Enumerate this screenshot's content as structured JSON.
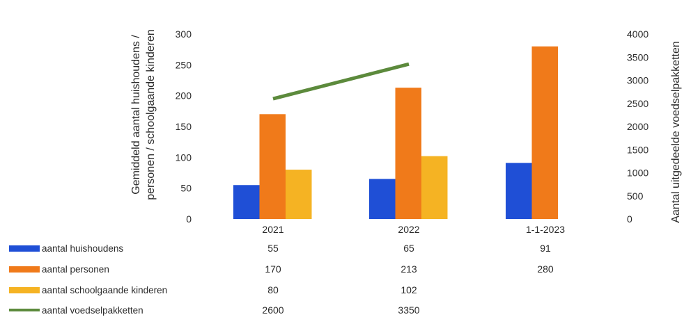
{
  "chart_data": {
    "type": "bar",
    "categories": [
      "2021",
      "2022",
      "1-1-2023"
    ],
    "ylabel_left": [
      "Gemiddeld aantal huishoudens /",
      "personen / schoolgaande kinderen"
    ],
    "ylabel_right": "Aantal uitgedeelde voedselpakketten",
    "ylim_left": [
      0,
      300
    ],
    "ylim_right": [
      0,
      4000
    ],
    "yticks_left": [
      "0",
      "50",
      "100",
      "150",
      "200",
      "250",
      "300"
    ],
    "yticks_right": [
      "0",
      "500",
      "1000",
      "1500",
      "2000",
      "2500",
      "3000",
      "3500",
      "4000"
    ],
    "legend": "data-table",
    "series": [
      {
        "name": "aantal huishoudens",
        "type": "bar",
        "axis": "left",
        "color": "#1f4fd6",
        "values": [
          55,
          65,
          91
        ],
        "labels": [
          "55",
          "65",
          "91"
        ]
      },
      {
        "name": "aantal personen",
        "type": "bar",
        "axis": "left",
        "color": "#f07a1a",
        "values": [
          170,
          213,
          280
        ],
        "labels": [
          "170",
          "213",
          "280"
        ]
      },
      {
        "name": "aantal schoolgaande kinderen",
        "type": "bar",
        "axis": "left",
        "color": "#f5b323",
        "values": [
          80,
          102,
          null
        ],
        "labels": [
          "80",
          "102",
          ""
        ]
      },
      {
        "name": "aantal voedselpakketten",
        "type": "line",
        "axis": "right",
        "color": "#5c8a3c",
        "values": [
          2600,
          3350,
          null
        ],
        "labels": [
          "2600",
          "3350",
          ""
        ]
      }
    ]
  }
}
